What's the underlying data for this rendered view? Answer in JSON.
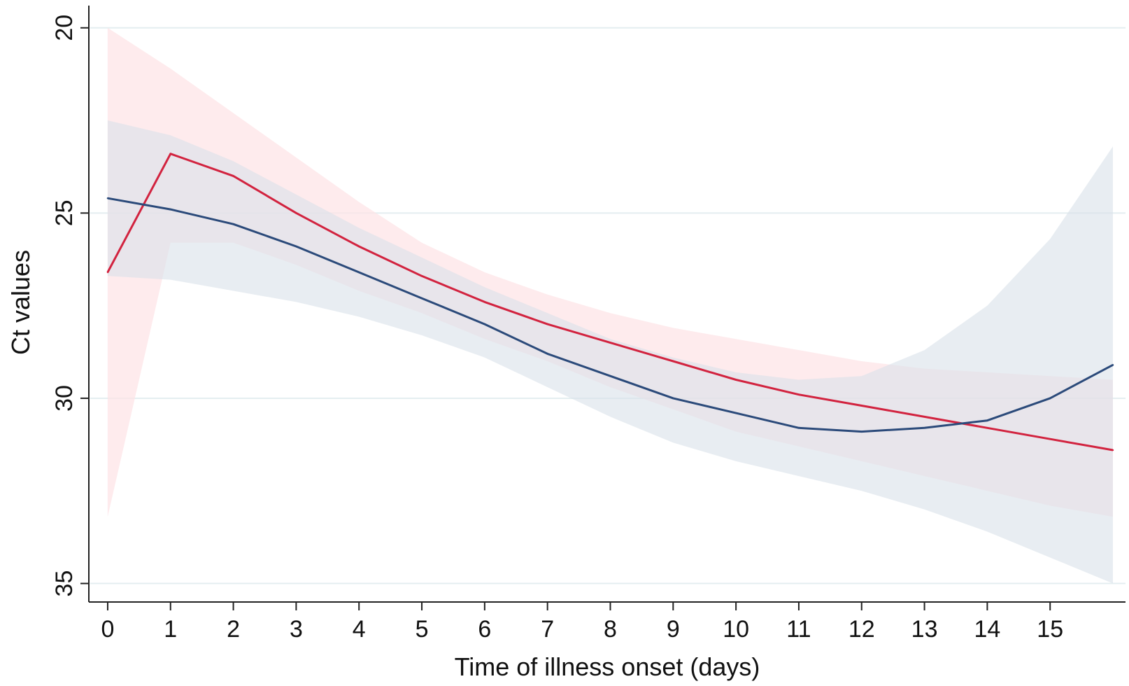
{
  "chart_data": {
    "type": "line",
    "xlabel": "Time of illness onset (days)",
    "ylabel": "Ct values",
    "x_ticks": [
      0,
      1,
      2,
      3,
      4,
      5,
      6,
      7,
      8,
      9,
      10,
      11,
      12,
      13,
      14,
      15
    ],
    "y_ticks": [
      20,
      25,
      30,
      35
    ],
    "xlim": [
      -0.3,
      16.2
    ],
    "ylim": [
      35.5,
      19.4
    ],
    "y_reversed": true,
    "grid": true,
    "x": [
      0,
      1,
      2,
      3,
      4,
      5,
      6,
      7,
      8,
      9,
      10,
      11,
      12,
      13,
      14,
      15,
      16
    ],
    "series": [
      {
        "color": "#d2233f",
        "band_color": "#fde3e6",
        "values": [
          26.6,
          23.4,
          24.0,
          25.0,
          25.9,
          26.7,
          27.4,
          28.0,
          28.5,
          29.0,
          29.5,
          29.9,
          30.2,
          30.5,
          30.8,
          31.1,
          31.4
        ],
        "lower": [
          20.0,
          21.1,
          22.3,
          23.5,
          24.7,
          25.8,
          26.6,
          27.2,
          27.7,
          28.1,
          28.4,
          28.7,
          29.0,
          29.2,
          29.3,
          29.4,
          29.5
        ],
        "upper": [
          33.2,
          25.8,
          25.8,
          26.4,
          27.1,
          27.7,
          28.4,
          29.0,
          29.7,
          30.3,
          30.9,
          31.3,
          31.7,
          32.1,
          32.5,
          32.9,
          33.2
        ]
      },
      {
        "color": "#2b4a7a",
        "band_color": "#d9e1ea",
        "values": [
          24.6,
          24.9,
          25.3,
          25.9,
          26.6,
          27.3,
          28.0,
          28.8,
          29.4,
          30.0,
          30.4,
          30.8,
          30.9,
          30.8,
          30.6,
          30.0,
          29.1
        ],
        "lower": [
          22.5,
          22.9,
          23.6,
          24.5,
          25.4,
          26.2,
          27.0,
          27.7,
          28.4,
          28.9,
          29.3,
          29.5,
          29.4,
          28.7,
          27.5,
          25.7,
          23.2
        ],
        "upper": [
          26.7,
          26.8,
          27.1,
          27.4,
          27.8,
          28.3,
          28.9,
          29.7,
          30.5,
          31.2,
          31.7,
          32.1,
          32.5,
          33.0,
          33.6,
          34.3,
          35.0
        ]
      }
    ]
  }
}
